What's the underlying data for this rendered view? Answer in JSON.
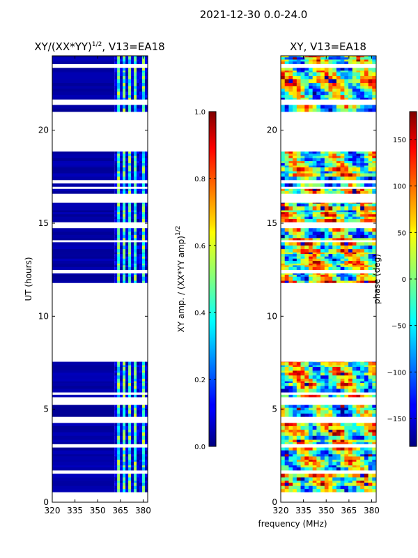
{
  "figure": {
    "suptitle": "2021-12-30 0.0-24.0",
    "common_xlabel": "frequency (MHz)"
  },
  "chart_data": [
    {
      "type": "heatmap",
      "title_main": "XY/(XX*YY)",
      "title_sup": "1/2",
      "title_tail": ", V13=EA18",
      "ylabel": "UT (hours)",
      "xlim": [
        320,
        383
      ],
      "ylim": [
        0,
        24
      ],
      "xticks": [
        320,
        335,
        350,
        365,
        380
      ],
      "yticks": [
        0,
        5,
        10,
        15,
        20
      ],
      "colorbar": {
        "label_main": "XY amp. / (XX*YY amp)",
        "label_sup": "1/2",
        "range": [
          0,
          1
        ],
        "ticks": [
          "0.0",
          "0.2",
          "0.4",
          "0.6",
          "0.8",
          "1.0"
        ],
        "tick_values": [
          0,
          0.2,
          0.4,
          0.6,
          0.8,
          1.0
        ],
        "colormap": "jet"
      },
      "data_ut_ranges_hours": [
        [
          0.55,
          7.55
        ],
        [
          11.8,
          12.3
        ],
        [
          12.5,
          16.1
        ],
        [
          16.6,
          18.85
        ],
        [
          21.0,
          24.0
        ]
      ],
      "high_value_freq_band_mhz": [
        361,
        383
      ],
      "low_value_freq_band_mhz": [
        320,
        361
      ]
    },
    {
      "type": "heatmap",
      "title": "XY, V13=EA18",
      "xlim": [
        320,
        383
      ],
      "ylim": [
        0,
        24
      ],
      "xticks": [
        320,
        335,
        350,
        365,
        380
      ],
      "yticks": [
        0,
        5,
        10,
        15,
        20
      ],
      "colorbar": {
        "label": "phase (deg)",
        "range": [
          -180,
          180
        ],
        "ticks": [
          "−150",
          "−100",
          "−50",
          "0",
          "50",
          "100",
          "150"
        ],
        "tick_values": [
          -150,
          -100,
          -50,
          0,
          50,
          100,
          150
        ],
        "colormap": "jet"
      },
      "data_ut_ranges_hours": [
        [
          0.55,
          7.55
        ],
        [
          11.8,
          12.3
        ],
        [
          12.5,
          16.1
        ],
        [
          16.6,
          18.85
        ],
        [
          21.0,
          24.0
        ]
      ]
    }
  ]
}
